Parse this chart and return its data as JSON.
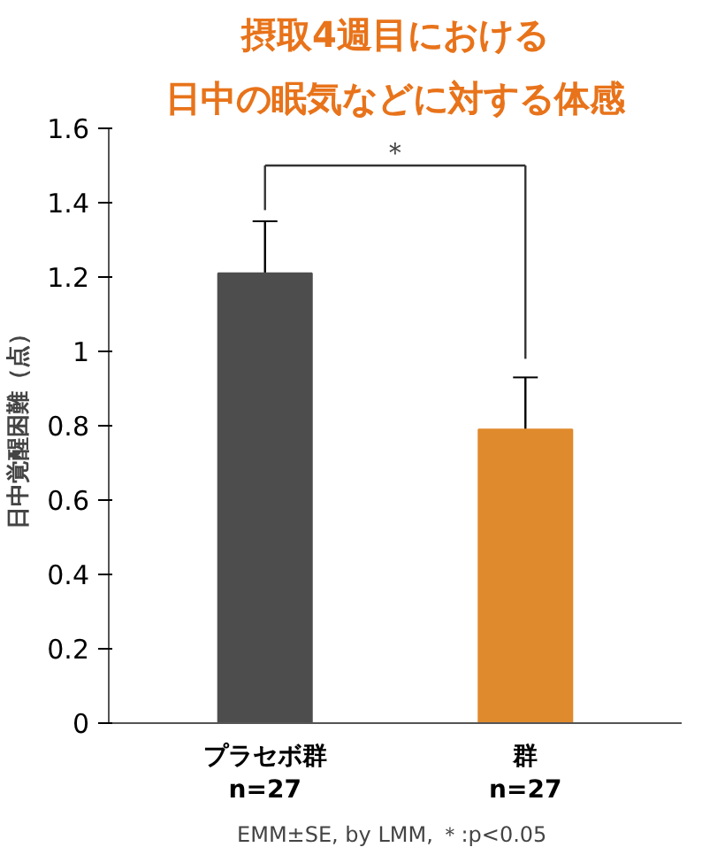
{
  "chart_data": {
    "type": "bar",
    "title": "摂取4週目における",
    "subtitle": "日中の眠気などに対する体感",
    "ylabel": "日中覚醒困難（点）",
    "categories": [
      "プラセボ群\nn=27",
      "群\nn=27"
    ],
    "values": [
      1.21,
      0.79
    ],
    "errors": [
      0.14,
      0.14
    ],
    "colors": [
      "#4d4d4d",
      "#e08a2e"
    ],
    "ylim": [
      0,
      1.6
    ],
    "yticks": [
      0,
      0.2,
      0.4,
      0.6,
      0.8,
      1,
      1.2,
      1.4,
      1.6
    ],
    "grid": false,
    "annotations": [
      "＊",
      "EMM±SE,  by LMM, ＊:p<0.05"
    ]
  }
}
